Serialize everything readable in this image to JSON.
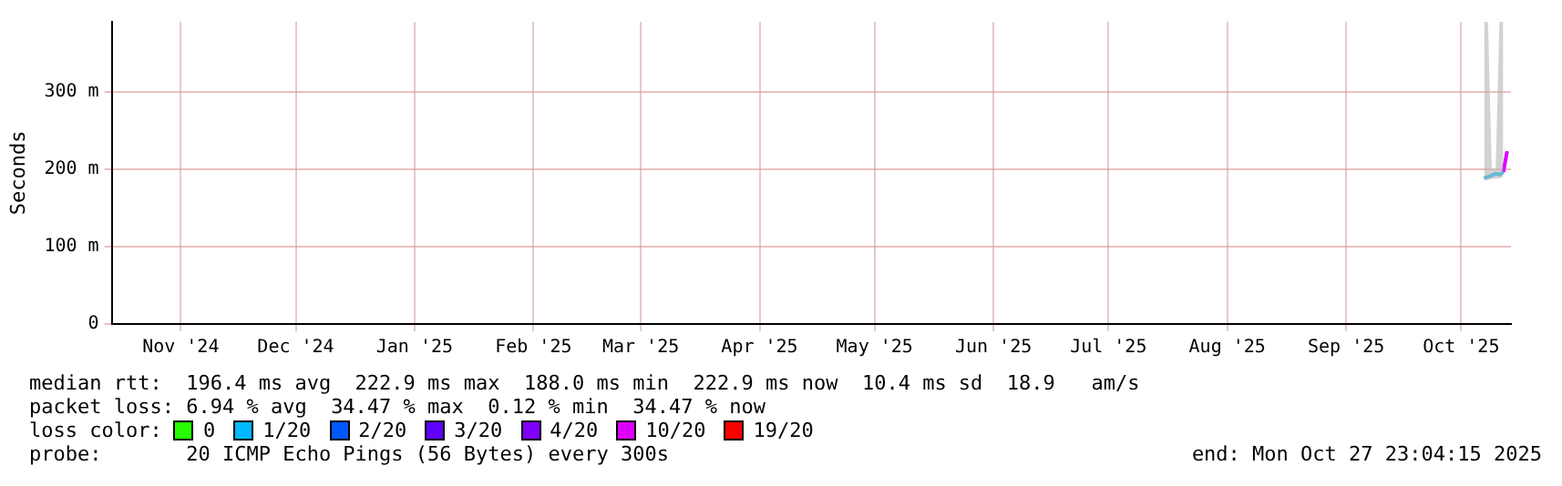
{
  "chart_data": {
    "type": "line",
    "ylabel": "Seconds",
    "legend_title": "loss color:",
    "legend": "bottom",
    "grid": true,
    "xlim": [
      "2024-10-28",
      "2025-10-28"
    ],
    "xticks": [
      {
        "value": "2024-11-15",
        "label": "Nov '24"
      },
      {
        "value": "2024-12-15",
        "label": "Dec '24"
      },
      {
        "value": "2025-01-15",
        "label": "Jan '25"
      },
      {
        "value": "2025-02-15",
        "label": "Feb '25"
      },
      {
        "value": "2025-03-15",
        "label": "Mar '25"
      },
      {
        "value": "2025-04-15",
        "label": "Apr '25"
      },
      {
        "value": "2025-05-15",
        "label": "May '25"
      },
      {
        "value": "2025-06-15",
        "label": "Jun '25"
      },
      {
        "value": "2025-07-15",
        "label": "Jul '25"
      },
      {
        "value": "2025-08-15",
        "label": "Aug '25"
      },
      {
        "value": "2025-09-15",
        "label": "Sep '25"
      },
      {
        "value": "2025-10-15",
        "label": "Oct '25"
      }
    ],
    "ylim": [
      0,
      390
    ],
    "yticks": [
      0,
      {
        "value": 100,
        "label": "100 m"
      },
      {
        "value": 200,
        "label": "200 m"
      },
      {
        "value": 300,
        "label": "300 m"
      }
    ],
    "series": [
      {
        "name": "0",
        "color": "#26ff00"
      },
      {
        "name": "1/20",
        "color": "#00b8ff",
        "x": [
          "2025-10-21",
          "2025-10-22",
          "2025-10-23",
          "2025-10-24",
          "2025-10-25",
          "2025-10-26"
        ],
        "values": [
          188,
          190,
          192,
          194,
          193,
          196
        ],
        "lower": [
          186,
          186,
          187,
          188,
          188,
          190
        ],
        "upper": [
          390,
          390,
          200,
          200,
          390,
          390
        ]
      },
      {
        "name": "2/20",
        "color": "#0059ff"
      },
      {
        "name": "3/20",
        "color": "#5e00ff"
      },
      {
        "name": "4/20",
        "color": "#7e00ff"
      },
      {
        "name": "10/20",
        "color": "#dd00ff",
        "x": [
          "2025-10-26",
          "2025-10-27"
        ],
        "values": [
          196,
          223
        ]
      },
      {
        "name": "19/20",
        "color": "#ff0000"
      }
    ],
    "annotations": [
      "median rtt:  196.4 ms avg  222.9 ms max  188.0 ms min  222.9 ms now  10.4 ms sd  18.9   am/s",
      "packet loss: 6.94 % avg  34.47 % max  0.12 % min  34.47 % now",
      "probe:       20 ICMP Echo Pings (56 Bytes) every 300s",
      "end: Mon Oct 27 23:04:15 2025"
    ]
  }
}
